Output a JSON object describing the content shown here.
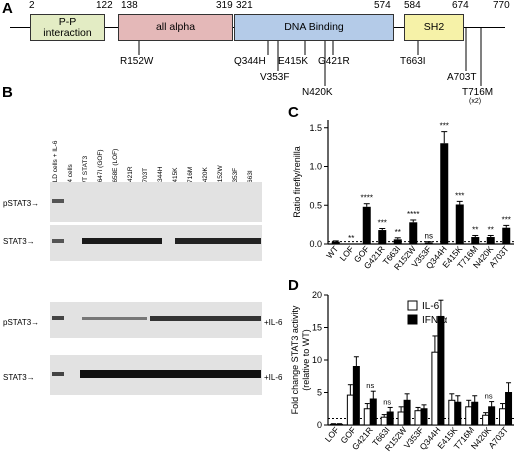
{
  "panel_labels": {
    "a": "A",
    "b": "B",
    "c": "C",
    "d": "D"
  },
  "panel_a": {
    "positions": [
      "2",
      "122",
      "138",
      "319",
      "321",
      "574",
      "584",
      "674",
      "770"
    ],
    "domains": {
      "pp_line1": "P-P",
      "pp_line2": "interaction",
      "alpha": "all alpha",
      "dna": "DNA Binding",
      "sh2": "SH2"
    },
    "mutations": [
      "R152W",
      "Q344H",
      "E415K",
      "G421R",
      "V353F",
      "N420K",
      "T663I",
      "A703T",
      "T716M"
    ],
    "t716m_note": "(x2)"
  },
  "panel_b": {
    "lanes": [
      "DLD cells + IL-6",
      "A4 cells",
      "WT STAT3",
      "N647I (GOF)",
      "K658E (LOF)",
      "G421R",
      "A703T",
      "Q344H",
      "E415K",
      "T716M",
      "N420K",
      "R152W",
      "V353F",
      "T663I"
    ],
    "blots": [
      {
        "label": "pSTAT3",
        "il6": ""
      },
      {
        "label": "STAT3",
        "il6": ""
      },
      {
        "label": "pSTAT3",
        "il6": "+IL-6"
      },
      {
        "label": "STAT3",
        "il6": "+IL-6"
      }
    ],
    "arrow": "→"
  },
  "chart_data": [
    {
      "type": "bar",
      "panel": "C",
      "ylabel": "Ratio firefly/renilla",
      "ylim": [
        0,
        1.6
      ],
      "yticks": [
        "0.0",
        "0.5",
        "1.0",
        "1.5"
      ],
      "categories": [
        "WT",
        "LOF",
        "GOF",
        "G421R",
        "T663I",
        "R152W",
        "V353F",
        "Q344H",
        "E415K",
        "T716M",
        "N420K",
        "A703T"
      ],
      "values": [
        0.03,
        0.0,
        0.48,
        0.18,
        0.06,
        0.28,
        0.02,
        1.3,
        0.51,
        0.09,
        0.09,
        0.21
      ],
      "errors": [
        0.01,
        0.0,
        0.04,
        0.02,
        0.02,
        0.03,
        0.01,
        0.15,
        0.04,
        0.02,
        0.02,
        0.03
      ],
      "significance": [
        "",
        "**",
        "****",
        "***",
        "**",
        "****",
        "ns",
        "***",
        "***",
        "**",
        "**",
        "***"
      ]
    },
    {
      "type": "bar",
      "panel": "D",
      "ylabel": "Fold change STAT3 activity",
      "ylabel2": "(relative to WT)",
      "ylim": [
        0,
        20
      ],
      "yticks": [
        "0",
        "5",
        "10",
        "15",
        "20"
      ],
      "categories": [
        "LOF",
        "GOF",
        "G421R",
        "T663I",
        "R152W",
        "V353F",
        "Q344H",
        "E415K",
        "T716M",
        "N420K",
        "A703T"
      ],
      "series": [
        {
          "name": "IL-6",
          "values": [
            0.1,
            4.6,
            2.5,
            1.2,
            2.0,
            2.2,
            11.2,
            3.8,
            2.8,
            1.5,
            2.5
          ],
          "errors": [
            0.1,
            1.6,
            0.8,
            0.4,
            0.8,
            0.5,
            2.5,
            1.0,
            1.0,
            0.4,
            0.8
          ]
        },
        {
          "name": "IFN-α",
          "values": [
            0.1,
            9.0,
            4.0,
            2.0,
            3.8,
            2.5,
            16.7,
            3.5,
            3.5,
            2.8,
            5.0
          ],
          "errors": [
            0.1,
            1.5,
            1.2,
            0.7,
            1.0,
            0.6,
            2.5,
            1.0,
            1.0,
            0.8,
            1.5
          ]
        }
      ],
      "significance": [
        "",
        "",
        "ns",
        "ns",
        "",
        "",
        "",
        "",
        "",
        "ns",
        ""
      ],
      "colors": {
        "il6": "#ffffff",
        "ifn": "#000000"
      }
    }
  ]
}
